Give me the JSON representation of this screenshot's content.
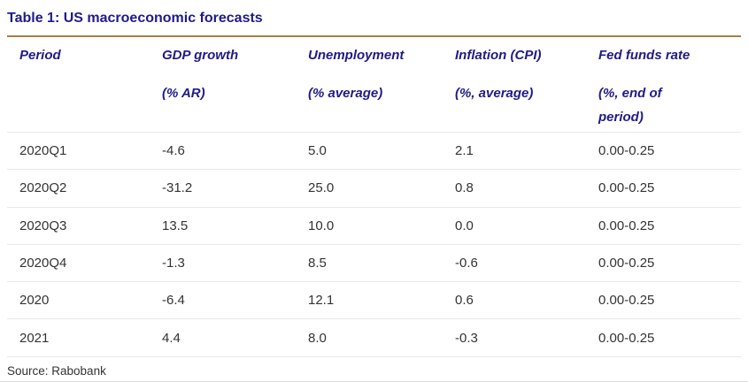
{
  "title": "Table 1: US macroeconomic forecasts",
  "source": "Source: Rabobank",
  "colors": {
    "title_navy": "#201b87",
    "header_navy": "#201b87",
    "rule_gold": "#a87f3e",
    "row_divider_gray": "#e8e8e8",
    "body_text": "#333333"
  },
  "table": {
    "columns": [
      {
        "label": "Period",
        "sub": ""
      },
      {
        "label": "GDP growth",
        "sub": "(% AR)"
      },
      {
        "label": "Unemployment",
        "sub": "(% average)"
      },
      {
        "label": "Inflation (CPI)",
        "sub": "(%, average)"
      },
      {
        "label": "Fed funds rate",
        "sub": "(%, end of period)"
      }
    ],
    "rows": [
      [
        "2020Q1",
        "-4.6",
        "5.0",
        "2.1",
        "0.00-0.25"
      ],
      [
        "2020Q2",
        "-31.2",
        "25.0",
        "0.8",
        "0.00-0.25"
      ],
      [
        "2020Q3",
        "13.5",
        "10.0",
        "0.0",
        "0.00-0.25"
      ],
      [
        "2020Q4",
        "-1.3",
        "8.5",
        "-0.6",
        "0.00-0.25"
      ],
      [
        "2020",
        "-6.4",
        "12.1",
        "0.6",
        "0.00-0.25"
      ],
      [
        "2021",
        "4.4",
        "8.0",
        "-0.3",
        "0.00-0.25"
      ]
    ]
  },
  "chart_data": {
    "type": "table",
    "title": "Table 1: US macroeconomic forecasts",
    "columns": [
      "Period",
      "GDP growth (% AR)",
      "Unemployment (% average)",
      "Inflation (CPI) (%, average)",
      "Fed funds rate (%, end of period)"
    ],
    "rows": [
      [
        "2020Q1",
        -4.6,
        5.0,
        2.1,
        "0.00-0.25"
      ],
      [
        "2020Q2",
        -31.2,
        25.0,
        0.8,
        "0.00-0.25"
      ],
      [
        "2020Q3",
        13.5,
        10.0,
        0.0,
        "0.00-0.25"
      ],
      [
        "2020Q4",
        -1.3,
        8.5,
        -0.6,
        "0.00-0.25"
      ],
      [
        "2020",
        -6.4,
        12.1,
        0.6,
        "0.00-0.25"
      ],
      [
        "2021",
        4.4,
        8.0,
        -0.3,
        "0.00-0.25"
      ]
    ],
    "source": "Source: Rabobank"
  }
}
